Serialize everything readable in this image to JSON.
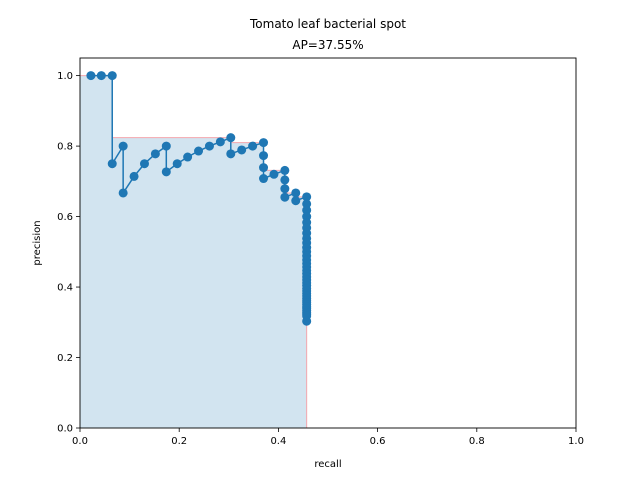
{
  "chart_data": {
    "type": "line",
    "title": "Tomato leaf bacterial spot",
    "subtitle": "AP=37.55%",
    "xlabel": "recall",
    "ylabel": "precision",
    "xlim": [
      0.0,
      1.0
    ],
    "ylim": [
      0.0,
      1.05
    ],
    "xticks": [
      "0.0",
      "0.2",
      "0.4",
      "0.6",
      "0.8",
      "1.0"
    ],
    "yticks": [
      "0.0",
      "0.2",
      "0.4",
      "0.6",
      "0.8",
      "1.0"
    ],
    "grid": false,
    "series_color": "#1f77b4",
    "fill_color": "#1f77b4",
    "interp_edge_color": "#f4a6ad",
    "series": [
      {
        "kind": "precision-recall",
        "x": [
          0.022,
          0.043,
          0.065,
          0.065,
          0.087,
          0.087,
          0.109,
          0.13,
          0.152,
          0.174,
          0.174,
          0.196,
          0.217,
          0.239,
          0.261,
          0.283,
          0.304,
          0.304,
          0.326,
          0.348,
          0.37,
          0.37,
          0.37,
          0.37,
          0.391,
          0.413,
          0.413,
          0.413,
          0.413,
          0.435,
          0.435,
          0.457,
          0.457,
          0.457,
          0.457,
          0.457,
          0.457,
          0.457,
          0.457,
          0.457,
          0.457,
          0.457,
          0.457,
          0.457,
          0.457,
          0.457,
          0.457,
          0.457,
          0.457,
          0.457,
          0.457,
          0.457,
          0.457,
          0.457,
          0.457,
          0.457,
          0.457,
          0.457,
          0.457,
          0.457,
          0.457,
          0.457,
          0.457,
          0.457,
          0.457,
          0.457,
          0.457
        ],
        "y": [
          1.0,
          1.0,
          1.0,
          0.75,
          0.8,
          0.667,
          0.714,
          0.75,
          0.778,
          0.8,
          0.727,
          0.75,
          0.769,
          0.786,
          0.8,
          0.812,
          0.824,
          0.778,
          0.789,
          0.8,
          0.81,
          0.773,
          0.739,
          0.708,
          0.72,
          0.731,
          0.704,
          0.679,
          0.655,
          0.667,
          0.645,
          0.656,
          0.636,
          0.618,
          0.6,
          0.583,
          0.568,
          0.553,
          0.538,
          0.525,
          0.512,
          0.5,
          0.488,
          0.477,
          0.467,
          0.457,
          0.447,
          0.438,
          0.429,
          0.42,
          0.412,
          0.404,
          0.396,
          0.389,
          0.382,
          0.375,
          0.368,
          0.362,
          0.356,
          0.35,
          0.344,
          0.339,
          0.333,
          0.328,
          0.323,
          0.318,
          0.303
        ]
      },
      {
        "kind": "interpolated-envelope",
        "x": [
          0.0,
          0.065,
          0.065,
          0.304,
          0.304,
          0.37,
          0.37,
          0.413,
          0.413,
          0.435,
          0.435,
          0.457,
          0.457
        ],
        "y": [
          1.0,
          1.0,
          0.824,
          0.824,
          0.81,
          0.81,
          0.731,
          0.731,
          0.667,
          0.667,
          0.656,
          0.656,
          0.0
        ]
      }
    ]
  }
}
